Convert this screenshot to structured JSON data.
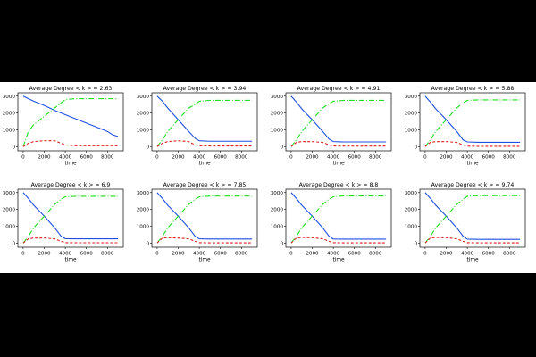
{
  "figure": {
    "xlabel": "time",
    "xticks": [
      0,
      2000,
      4000,
      6000,
      8000
    ],
    "yticks": [
      0,
      1000,
      2000,
      3000
    ],
    "xlim": [
      -500,
      9500
    ],
    "ylim": [
      -250,
      3200
    ],
    "colors": {
      "blue": "#1f4fe0",
      "green": "#22dd22",
      "red": "#dd2222",
      "axes": "#000000"
    }
  },
  "chart_data": [
    {
      "type": "line",
      "title": "Average Degree < k > = 2.63",
      "x": [
        0,
        500,
        1000,
        2000,
        3000,
        4000,
        5000,
        6000,
        7000,
        8000,
        8500,
        9000
      ],
      "series": [
        {
          "values": [
            3000,
            2850,
            2700,
            2450,
            2150,
            1900,
            1650,
            1400,
            1150,
            900,
            700,
            600
          ],
          "style": "solid",
          "color": "blue"
        },
        {
          "values": [
            0,
            900,
            1300,
            1800,
            2300,
            2800,
            2850,
            2850,
            2850,
            2850,
            2850,
            2850
          ],
          "style": "dashdot",
          "color": "green"
        },
        {
          "values": [
            0,
            200,
            300,
            350,
            350,
            100,
            50,
            50,
            50,
            50,
            50,
            50
          ],
          "style": "dashed",
          "color": "red"
        }
      ],
      "xlabel": "time",
      "ylim": [
        -250,
        3200
      ]
    },
    {
      "type": "line",
      "title": "Average Degree < k > = 3.94",
      "x": [
        0,
        500,
        1000,
        2000,
        3000,
        3600,
        4000,
        5000,
        6000,
        7000,
        8000,
        9000
      ],
      "series": [
        {
          "values": [
            3000,
            2700,
            2300,
            1600,
            900,
            500,
            350,
            320,
            320,
            320,
            320,
            320
          ],
          "style": "solid",
          "color": "blue"
        },
        {
          "values": [
            0,
            400,
            900,
            1600,
            2300,
            2500,
            2700,
            2750,
            2750,
            2750,
            2750,
            2750
          ],
          "style": "dashdot",
          "color": "green"
        },
        {
          "values": [
            0,
            200,
            300,
            350,
            300,
            100,
            50,
            40,
            40,
            40,
            40,
            40
          ],
          "style": "dashed",
          "color": "red"
        }
      ],
      "xlabel": "time",
      "ylim": [
        -250,
        3200
      ]
    },
    {
      "type": "line",
      "title": "Average Degree < k > = 4.91",
      "x": [
        0,
        500,
        1000,
        2000,
        3000,
        3600,
        4000,
        5000,
        6000,
        7000,
        8000,
        9000
      ],
      "series": [
        {
          "values": [
            3000,
            2650,
            2250,
            1600,
            900,
            450,
            300,
            280,
            280,
            280,
            280,
            280
          ],
          "style": "solid",
          "color": "blue"
        },
        {
          "values": [
            0,
            400,
            900,
            1600,
            2300,
            2550,
            2700,
            2750,
            2750,
            2750,
            2750,
            2750
          ],
          "style": "dashdot",
          "color": "green"
        },
        {
          "values": [
            0,
            250,
            300,
            300,
            250,
            100,
            40,
            30,
            30,
            30,
            30,
            30
          ],
          "style": "dashed",
          "color": "red"
        }
      ],
      "xlabel": "time",
      "ylim": [
        -250,
        3200
      ]
    },
    {
      "type": "line",
      "title": "Average Degree < k > = 5.88",
      "x": [
        0,
        500,
        1000,
        2000,
        3000,
        3600,
        4000,
        5000,
        6000,
        7000,
        8000,
        9000
      ],
      "series": [
        {
          "values": [
            3000,
            2650,
            2250,
            1600,
            900,
            400,
            280,
            260,
            260,
            260,
            260,
            260
          ],
          "style": "solid",
          "color": "blue"
        },
        {
          "values": [
            0,
            400,
            900,
            1600,
            2300,
            2600,
            2750,
            2780,
            2780,
            2780,
            2780,
            2780
          ],
          "style": "dashdot",
          "color": "green"
        },
        {
          "values": [
            0,
            250,
            300,
            300,
            250,
            100,
            30,
            20,
            20,
            20,
            20,
            20
          ],
          "style": "dashed",
          "color": "red"
        }
      ],
      "xlabel": "time",
      "ylim": [
        -250,
        3200
      ]
    },
    {
      "type": "line",
      "title": "Average Degree < k > = 6.9",
      "x": [
        0,
        500,
        1000,
        2000,
        3000,
        3600,
        4000,
        5000,
        6000,
        7000,
        8000,
        9000
      ],
      "series": [
        {
          "values": [
            3000,
            2650,
            2250,
            1600,
            900,
            400,
            260,
            250,
            250,
            250,
            250,
            250
          ],
          "style": "solid",
          "color": "blue"
        },
        {
          "values": [
            0,
            400,
            900,
            1600,
            2300,
            2600,
            2750,
            2780,
            2780,
            2780,
            2780,
            2780
          ],
          "style": "dashdot",
          "color": "green"
        },
        {
          "values": [
            0,
            250,
            300,
            300,
            250,
            100,
            20,
            15,
            15,
            15,
            15,
            15
          ],
          "style": "dashed",
          "color": "red"
        }
      ],
      "xlabel": "time",
      "ylim": [
        -250,
        3200
      ]
    },
    {
      "type": "line",
      "title": "Average Degree < k > = 7.85",
      "x": [
        0,
        500,
        1000,
        2000,
        3000,
        3600,
        4000,
        5000,
        6000,
        7000,
        8000,
        9000
      ],
      "series": [
        {
          "values": [
            3000,
            2650,
            2250,
            1600,
            900,
            400,
            250,
            240,
            240,
            240,
            240,
            240
          ],
          "style": "solid",
          "color": "blue"
        },
        {
          "values": [
            0,
            400,
            900,
            1600,
            2300,
            2600,
            2750,
            2790,
            2790,
            2790,
            2790,
            2790
          ],
          "style": "dashdot",
          "color": "green"
        },
        {
          "values": [
            0,
            300,
            320,
            300,
            250,
            100,
            20,
            10,
            10,
            10,
            10,
            10
          ],
          "style": "dashed",
          "color": "red"
        }
      ],
      "xlabel": "time",
      "ylim": [
        -250,
        3200
      ]
    },
    {
      "type": "line",
      "title": "Average Degree < k > = 8.8",
      "x": [
        0,
        500,
        1000,
        2000,
        3000,
        3600,
        4000,
        5000,
        6000,
        7000,
        8000,
        9000
      ],
      "series": [
        {
          "values": [
            3000,
            2650,
            2250,
            1600,
            900,
            400,
            240,
            230,
            230,
            230,
            230,
            230
          ],
          "style": "solid",
          "color": "blue"
        },
        {
          "values": [
            0,
            400,
            900,
            1600,
            2300,
            2600,
            2750,
            2800,
            2800,
            2800,
            2800,
            2800
          ],
          "style": "dashdot",
          "color": "green"
        },
        {
          "values": [
            0,
            300,
            330,
            320,
            250,
            100,
            20,
            10,
            10,
            10,
            10,
            10
          ],
          "style": "dashed",
          "color": "red"
        }
      ],
      "xlabel": "time",
      "ylim": [
        -250,
        3200
      ]
    },
    {
      "type": "line",
      "title": "Average Degree < k > = 9.74",
      "x": [
        0,
        500,
        1000,
        2000,
        3000,
        3600,
        4000,
        5000,
        6000,
        7000,
        8000,
        9000
      ],
      "series": [
        {
          "values": [
            3000,
            2650,
            2250,
            1600,
            900,
            400,
            230,
            220,
            220,
            220,
            220,
            220
          ],
          "style": "solid",
          "color": "blue"
        },
        {
          "values": [
            0,
            400,
            900,
            1600,
            2300,
            2600,
            2780,
            2820,
            2820,
            2820,
            2820,
            2820
          ],
          "style": "dashdot",
          "color": "green"
        },
        {
          "values": [
            0,
            300,
            330,
            320,
            250,
            100,
            20,
            10,
            10,
            10,
            10,
            10
          ],
          "style": "dashed",
          "color": "red"
        }
      ],
      "xlabel": "time",
      "ylim": [
        -250,
        3200
      ]
    }
  ]
}
